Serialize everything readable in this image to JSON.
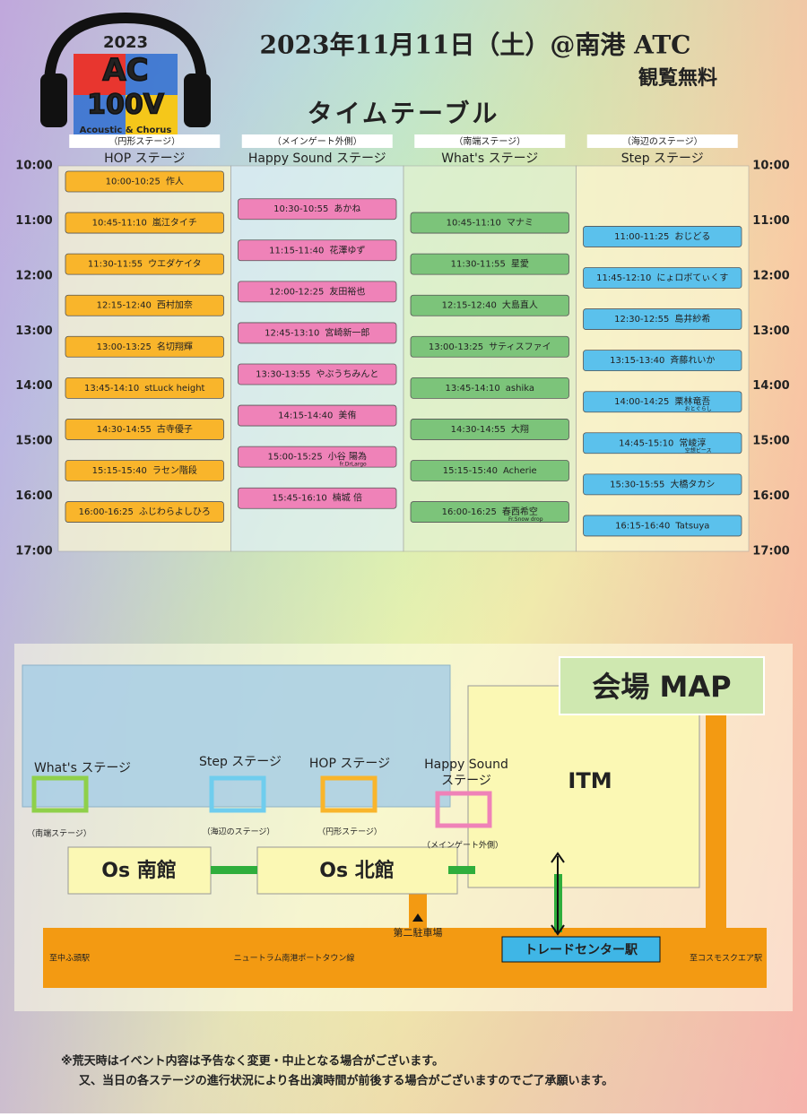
{
  "logo": {
    "year": "2023",
    "line1": "AC",
    "line2": "100V",
    "tagline": "Acoustic & Chorus"
  },
  "header": {
    "date": "2023年11月11日（土）@南港 ATC",
    "admission": "観覧無料",
    "title": "タイムテーブル"
  },
  "hours": [
    "10:00",
    "11:00",
    "12:00",
    "13:00",
    "14:00",
    "15:00",
    "16:00",
    "17:00"
  ],
  "stages": [
    {
      "label": "（円形ステージ）",
      "name": "HOP ステージ",
      "color": "#f9b52b",
      "entries": [
        {
          "time": "10:00-10:25",
          "name": "作人"
        },
        {
          "time": "10:45-11:10",
          "name": "嵐江タイチ"
        },
        {
          "time": "11:30-11:55",
          "name": "ウエダケイタ"
        },
        {
          "time": "12:15-12:40",
          "name": "西村加奈"
        },
        {
          "time": "13:00-13:25",
          "name": "名切翔輝"
        },
        {
          "time": "13:45-14:10",
          "name": "stLuck height"
        },
        {
          "time": "14:30-14:55",
          "name": "古寺優子"
        },
        {
          "time": "15:15-15:40",
          "name": "ラセン階段"
        },
        {
          "time": "16:00-16:25",
          "name": "ふじわらよしひろ"
        }
      ]
    },
    {
      "label": "（メインゲート外側）",
      "name": "Happy Sound ステージ",
      "color": "#ef82b8",
      "entries": [
        {
          "time": "10:30-10:55",
          "name": "あかね"
        },
        {
          "time": "11:15-11:40",
          "name": "花澤ゆず"
        },
        {
          "time": "12:00-12:25",
          "name": "友田裕也"
        },
        {
          "time": "12:45-13:10",
          "name": "宮崎新一郎"
        },
        {
          "time": "13:30-13:55",
          "name": "やぶうちみんと"
        },
        {
          "time": "14:15-14:40",
          "name": "美侑"
        },
        {
          "time": "15:00-15:25",
          "name": "小谷 陽為",
          "note": "fr.DrLargo"
        },
        {
          "time": "15:45-16:10",
          "name": "楠城 倍"
        }
      ]
    },
    {
      "label": "（南端ステージ）",
      "name": "What's ステージ",
      "color": "#7cc47a",
      "entries": [
        {
          "time": "10:45-11:10",
          "name": "マナミ"
        },
        {
          "time": "11:30-11:55",
          "name": "星愛"
        },
        {
          "time": "12:15-12:40",
          "name": "大島直人"
        },
        {
          "time": "13:00-13:25",
          "name": "サティスファイ"
        },
        {
          "time": "13:45-14:10",
          "name": "ashika"
        },
        {
          "time": "14:30-14:55",
          "name": "大翔"
        },
        {
          "time": "15:15-15:40",
          "name": "Acherie"
        },
        {
          "time": "16:00-16:25",
          "name": "春西希空",
          "note": "Fr.Snow drop"
        }
      ]
    },
    {
      "label": "（海辺のステージ）",
      "name": "Step ステージ",
      "color": "#5bc1ec",
      "entries": [
        {
          "time": "11:00-11:25",
          "name": "おじどる"
        },
        {
          "time": "11:45-12:10",
          "name": "にょロボてぃくす"
        },
        {
          "time": "12:30-12:55",
          "name": "島井紗希"
        },
        {
          "time": "13:15-13:40",
          "name": "斉藤れいか"
        },
        {
          "time": "14:00-14:25",
          "name": "栗林竜吾",
          "note": "おとぐらし"
        },
        {
          "time": "14:45-15:10",
          "name": "常崚淳",
          "note": "空想ピース"
        },
        {
          "time": "15:30-15:55",
          "name": "大橋タカシ"
        },
        {
          "time": "16:15-16:40",
          "name": "Tatsuya"
        }
      ]
    }
  ],
  "map": {
    "title": "会場 MAP",
    "whats": "What's ステージ",
    "whats_sub": "（南端ステージ）",
    "step": "Step ステージ",
    "step_sub": "（海辺のステージ）",
    "hop": "HOP ステージ",
    "hop_sub": "（円形ステージ）",
    "happy1": "Happy Sound",
    "happy2": "ステージ",
    "happy_sub": "（メインゲート外側）",
    "south": "Os 南館",
    "north": "Os 北館",
    "itm": "ITM",
    "parking": "第二駐車場",
    "station": "トレードセンター駅",
    "left_dest": "至中ふ頭駅",
    "line": "ニュートラム南港ポートタウン線",
    "right_dest": "至コスモスクエア駅"
  },
  "notes": [
    "※荒天時はイベント内容は予告なく変更・中止となる場合がございます。",
    "又、当日の各ステージの進行状況により各出演時間が前後する場合がございますのでご了承願います。"
  ]
}
